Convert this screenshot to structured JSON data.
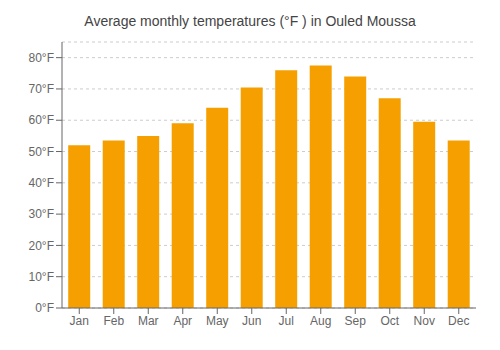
{
  "chart_data": {
    "type": "bar",
    "title": "Average monthly temperatures (°F ) in Ouled Moussa",
    "categories": [
      "Jan",
      "Feb",
      "Mar",
      "Apr",
      "May",
      "Jun",
      "Jul",
      "Aug",
      "Sep",
      "Oct",
      "Nov",
      "Dec"
    ],
    "values": [
      52.0,
      53.5,
      55.0,
      59.0,
      64.0,
      70.5,
      76.0,
      77.5,
      74.0,
      67.0,
      59.5,
      53.5
    ],
    "color": "#F5A000",
    "ylim": [
      0,
      85
    ],
    "yticks": [
      {
        "value": 0,
        "label": "0°F"
      },
      {
        "value": 10,
        "label": "10°F"
      },
      {
        "value": 20,
        "label": "20°F"
      },
      {
        "value": 30,
        "label": "30°F"
      },
      {
        "value": 40,
        "label": "40°F"
      },
      {
        "value": 50,
        "label": "50°F"
      },
      {
        "value": 60,
        "label": "60°F"
      },
      {
        "value": 70,
        "label": "70°F"
      },
      {
        "value": 80,
        "label": "80°F"
      }
    ],
    "grid": true
  }
}
